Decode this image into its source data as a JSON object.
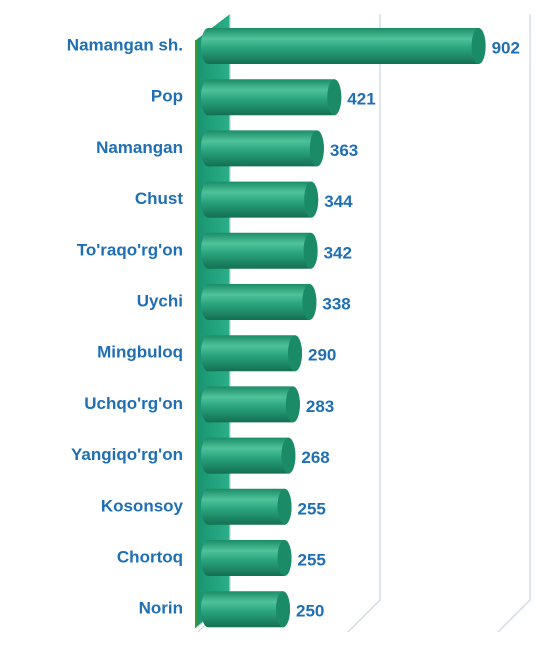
{
  "chart_data": {
    "type": "bar",
    "orientation": "horizontal",
    "categories": [
      "Namangan sh.",
      "Pop",
      "Namangan",
      "Chust",
      "To'raqo'rg'on",
      "Uychi",
      "Mingbuloq",
      "Uchqo'rg'on",
      "Yangiqo'rg'on",
      "Kosonsoy",
      "Chortoq",
      "Norin"
    ],
    "values": [
      902,
      421,
      363,
      344,
      342,
      338,
      290,
      283,
      268,
      255,
      255,
      250
    ],
    "color": "#22a07a",
    "xlim": [
      0,
      1000
    ],
    "xticks": [
      0,
      500,
      1000
    ],
    "grid": true
  }
}
